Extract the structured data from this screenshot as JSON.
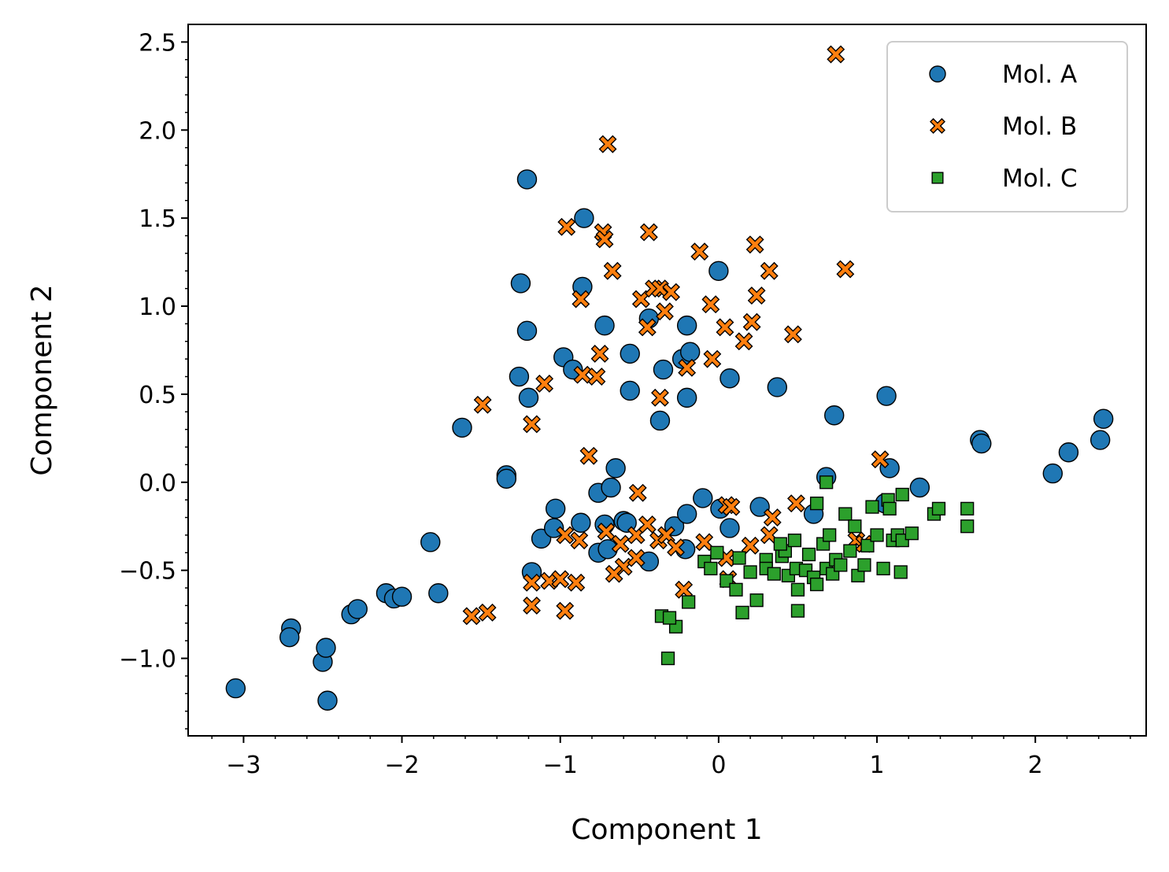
{
  "chart_data": {
    "type": "scatter",
    "title": "",
    "xlabel": "Component 1",
    "ylabel": "Component 2",
    "xlim": [
      -3.35,
      2.7
    ],
    "ylim": [
      -1.44,
      2.6
    ],
    "xticks": [
      -3,
      -2,
      -1,
      0,
      1,
      2
    ],
    "xtick_labels": [
      "−3",
      "−2",
      "−1",
      "0",
      "1",
      "2"
    ],
    "yticks": [
      -1.0,
      -0.5,
      0.0,
      0.5,
      1.0,
      1.5,
      2.0,
      2.5
    ],
    "ytick_labels": [
      "−1.0",
      "−0.5",
      "0.0",
      "0.5",
      "1.0",
      "1.5",
      "2.0",
      "2.5"
    ],
    "grid": false,
    "legend_position": "top-right",
    "series": [
      {
        "name": "Mol. A",
        "marker": "circle",
        "color": "#1f77b4",
        "points": [
          [
            -3.05,
            -1.17
          ],
          [
            -2.7,
            -0.83
          ],
          [
            -2.71,
            -0.88
          ],
          [
            -2.5,
            -1.02
          ],
          [
            -2.48,
            -0.94
          ],
          [
            -2.47,
            -1.24
          ],
          [
            -2.32,
            -0.75
          ],
          [
            -2.28,
            -0.72
          ],
          [
            -2.1,
            -0.63
          ],
          [
            -2.05,
            -0.66
          ],
          [
            -2.0,
            -0.65
          ],
          [
            -1.82,
            -0.34
          ],
          [
            -1.77,
            -0.63
          ],
          [
            -1.62,
            0.31
          ],
          [
            -1.34,
            0.04
          ],
          [
            -1.34,
            0.02
          ],
          [
            -1.25,
            1.13
          ],
          [
            -1.26,
            0.6
          ],
          [
            -1.21,
            1.72
          ],
          [
            -1.21,
            0.86
          ],
          [
            -1.2,
            0.48
          ],
          [
            -1.18,
            -0.51
          ],
          [
            -1.12,
            -0.32
          ],
          [
            -1.04,
            -0.26
          ],
          [
            -1.03,
            -0.15
          ],
          [
            -0.98,
            0.71
          ],
          [
            -0.92,
            0.64
          ],
          [
            -0.86,
            1.11
          ],
          [
            -0.85,
            1.5
          ],
          [
            -0.87,
            -0.23
          ],
          [
            -0.76,
            -0.06
          ],
          [
            -0.76,
            -0.4
          ],
          [
            -0.72,
            0.89
          ],
          [
            -0.72,
            -0.24
          ],
          [
            -0.7,
            -0.38
          ],
          [
            -0.68,
            -0.03
          ],
          [
            -0.65,
            0.08
          ],
          [
            -0.6,
            -0.22
          ],
          [
            -0.58,
            -0.23
          ],
          [
            -0.56,
            0.73
          ],
          [
            -0.56,
            0.52
          ],
          [
            -0.44,
            0.93
          ],
          [
            -0.44,
            -0.45
          ],
          [
            -0.37,
            0.35
          ],
          [
            -0.35,
            0.64
          ],
          [
            -0.28,
            -0.25
          ],
          [
            -0.23,
            0.7
          ],
          [
            -0.2,
            0.89
          ],
          [
            -0.18,
            0.74
          ],
          [
            -0.2,
            0.48
          ],
          [
            -0.2,
            -0.18
          ],
          [
            -0.21,
            -0.38
          ],
          [
            -0.1,
            -0.09
          ],
          [
            0.0,
            1.2
          ],
          [
            0.01,
            -0.15
          ],
          [
            0.07,
            0.59
          ],
          [
            0.07,
            -0.26
          ],
          [
            0.26,
            -0.14
          ],
          [
            0.37,
            0.54
          ],
          [
            0.6,
            -0.18
          ],
          [
            0.68,
            0.03
          ],
          [
            0.73,
            0.38
          ],
          [
            1.06,
            0.49
          ],
          [
            1.05,
            -0.12
          ],
          [
            1.08,
            0.08
          ],
          [
            1.27,
            -0.03
          ],
          [
            1.65,
            0.24
          ],
          [
            1.66,
            0.22
          ],
          [
            2.11,
            0.05
          ],
          [
            2.21,
            0.17
          ],
          [
            2.41,
            0.24
          ],
          [
            2.43,
            0.36
          ]
        ]
      },
      {
        "name": "Mol. B",
        "marker": "x-filled",
        "color": "#ff7f0e",
        "points": [
          [
            0.74,
            2.43
          ],
          [
            -0.7,
            1.92
          ],
          [
            -0.96,
            1.45
          ],
          [
            -0.73,
            1.42
          ],
          [
            -0.72,
            1.38
          ],
          [
            -0.44,
            1.42
          ],
          [
            -0.12,
            1.31
          ],
          [
            0.23,
            1.35
          ],
          [
            0.32,
            1.2
          ],
          [
            0.8,
            1.21
          ],
          [
            -0.67,
            1.2
          ],
          [
            -0.49,
            1.04
          ],
          [
            -0.41,
            1.1
          ],
          [
            -0.37,
            1.1
          ],
          [
            -0.3,
            1.08
          ],
          [
            -0.34,
            0.97
          ],
          [
            -0.87,
            1.04
          ],
          [
            -0.05,
            1.01
          ],
          [
            0.24,
            1.06
          ],
          [
            -0.45,
            0.88
          ],
          [
            0.04,
            0.88
          ],
          [
            0.21,
            0.91
          ],
          [
            0.16,
            0.8
          ],
          [
            0.47,
            0.84
          ],
          [
            -0.75,
            0.73
          ],
          [
            -0.04,
            0.7
          ],
          [
            -0.2,
            0.65
          ],
          [
            -0.86,
            0.61
          ],
          [
            -0.77,
            0.6
          ],
          [
            -1.1,
            0.56
          ],
          [
            -0.37,
            0.48
          ],
          [
            -1.18,
            0.33
          ],
          [
            -1.49,
            0.44
          ],
          [
            -0.82,
            0.15
          ],
          [
            1.02,
            0.13
          ],
          [
            -0.51,
            -0.06
          ],
          [
            0.05,
            -0.13
          ],
          [
            0.08,
            -0.14
          ],
          [
            0.34,
            -0.2
          ],
          [
            0.49,
            -0.12
          ],
          [
            -0.97,
            -0.3
          ],
          [
            -0.88,
            -0.33
          ],
          [
            -0.71,
            -0.28
          ],
          [
            -0.62,
            -0.35
          ],
          [
            -0.52,
            -0.3
          ],
          [
            -0.45,
            -0.24
          ],
          [
            -0.38,
            -0.33
          ],
          [
            -0.33,
            -0.3
          ],
          [
            -0.27,
            -0.37
          ],
          [
            -0.6,
            -0.48
          ],
          [
            -0.66,
            -0.52
          ],
          [
            -0.52,
            -0.43
          ],
          [
            -0.09,
            -0.34
          ],
          [
            0.05,
            -0.43
          ],
          [
            0.2,
            -0.36
          ],
          [
            0.32,
            -0.3
          ],
          [
            0.87,
            -0.33
          ],
          [
            0.92,
            -0.35
          ],
          [
            -1.18,
            -0.57
          ],
          [
            -1.07,
            -0.56
          ],
          [
            -1.0,
            -0.55
          ],
          [
            -0.9,
            -0.57
          ],
          [
            -1.18,
            -0.7
          ],
          [
            -0.97,
            -0.73
          ],
          [
            -1.46,
            -0.74
          ],
          [
            -1.56,
            -0.76
          ],
          [
            -0.22,
            -0.61
          ],
          [
            0.06,
            -0.55
          ]
        ]
      },
      {
        "name": "Mol. C",
        "marker": "square",
        "color": "#2ca02c",
        "points": [
          [
            -0.32,
            -1.0
          ],
          [
            -0.27,
            -0.82
          ],
          [
            -0.36,
            -0.76
          ],
          [
            -0.31,
            -0.77
          ],
          [
            -0.19,
            -0.68
          ],
          [
            -0.09,
            -0.45
          ],
          [
            -0.05,
            -0.49
          ],
          [
            -0.01,
            -0.4
          ],
          [
            0.05,
            -0.56
          ],
          [
            0.11,
            -0.61
          ],
          [
            0.13,
            -0.43
          ],
          [
            0.15,
            -0.74
          ],
          [
            0.2,
            -0.51
          ],
          [
            0.24,
            -0.67
          ],
          [
            0.3,
            -0.44
          ],
          [
            0.3,
            -0.49
          ],
          [
            0.35,
            -0.52
          ],
          [
            0.4,
            -0.42
          ],
          [
            0.42,
            -0.39
          ],
          [
            0.44,
            -0.53
          ],
          [
            0.48,
            -0.33
          ],
          [
            0.49,
            -0.49
          ],
          [
            0.5,
            -0.61
          ],
          [
            0.5,
            -0.73
          ],
          [
            0.55,
            -0.5
          ],
          [
            0.57,
            -0.41
          ],
          [
            0.6,
            -0.54
          ],
          [
            0.62,
            -0.58
          ],
          [
            0.62,
            -0.12
          ],
          [
            0.66,
            -0.35
          ],
          [
            0.68,
            -0.49
          ],
          [
            0.7,
            -0.3
          ],
          [
            0.72,
            -0.52
          ],
          [
            0.74,
            -0.44
          ],
          [
            0.77,
            -0.47
          ],
          [
            0.8,
            -0.18
          ],
          [
            0.83,
            -0.39
          ],
          [
            0.86,
            -0.25
          ],
          [
            0.88,
            -0.53
          ],
          [
            0.92,
            -0.47
          ],
          [
            0.94,
            -0.36
          ],
          [
            0.97,
            -0.14
          ],
          [
            1.0,
            -0.3
          ],
          [
            1.04,
            -0.49
          ],
          [
            1.07,
            -0.1
          ],
          [
            1.08,
            -0.15
          ],
          [
            1.1,
            -0.33
          ],
          [
            1.13,
            -0.3
          ],
          [
            1.15,
            -0.51
          ],
          [
            1.16,
            -0.33
          ],
          [
            1.16,
            -0.07
          ],
          [
            1.22,
            -0.29
          ],
          [
            1.36,
            -0.18
          ],
          [
            1.39,
            -0.15
          ],
          [
            1.57,
            -0.15
          ],
          [
            1.57,
            -0.25
          ],
          [
            0.68,
            0.0
          ],
          [
            0.39,
            -0.35
          ]
        ]
      }
    ]
  }
}
